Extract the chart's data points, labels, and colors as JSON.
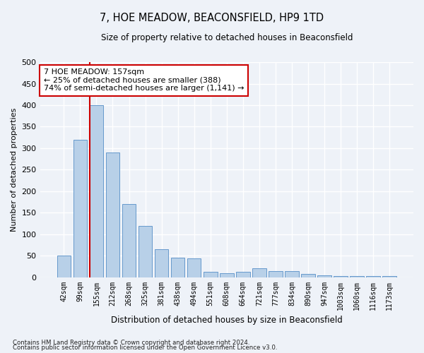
{
  "title": "7, HOE MEADOW, BEACONSFIELD, HP9 1TD",
  "subtitle": "Size of property relative to detached houses in Beaconsfield",
  "xlabel": "Distribution of detached houses by size in Beaconsfield",
  "ylabel": "Number of detached properties",
  "categories": [
    "42sqm",
    "99sqm",
    "155sqm",
    "212sqm",
    "268sqm",
    "325sqm",
    "381sqm",
    "438sqm",
    "494sqm",
    "551sqm",
    "608sqm",
    "664sqm",
    "721sqm",
    "777sqm",
    "834sqm",
    "890sqm",
    "947sqm",
    "1003sqm",
    "1060sqm",
    "1116sqm",
    "1173sqm"
  ],
  "values": [
    50,
    320,
    400,
    290,
    170,
    120,
    65,
    45,
    43,
    12,
    10,
    12,
    20,
    15,
    14,
    8,
    5,
    3,
    3,
    3,
    3
  ],
  "bar_color": "#b8d0e8",
  "bar_edge_color": "#6699cc",
  "vline_index": 2,
  "vline_color": "#cc0000",
  "annotation_text": "7 HOE MEADOW: 157sqm\n← 25% of detached houses are smaller (388)\n74% of semi-detached houses are larger (1,141) →",
  "annotation_box_color": "#ffffff",
  "annotation_box_edge": "#cc0000",
  "background_color": "#eef2f8",
  "grid_color": "#ffffff",
  "footer1": "Contains HM Land Registry data © Crown copyright and database right 2024.",
  "footer2": "Contains public sector information licensed under the Open Government Licence v3.0.",
  "ylim": [
    0,
    500
  ],
  "yticks": [
    0,
    50,
    100,
    150,
    200,
    250,
    300,
    350,
    400,
    450,
    500
  ]
}
